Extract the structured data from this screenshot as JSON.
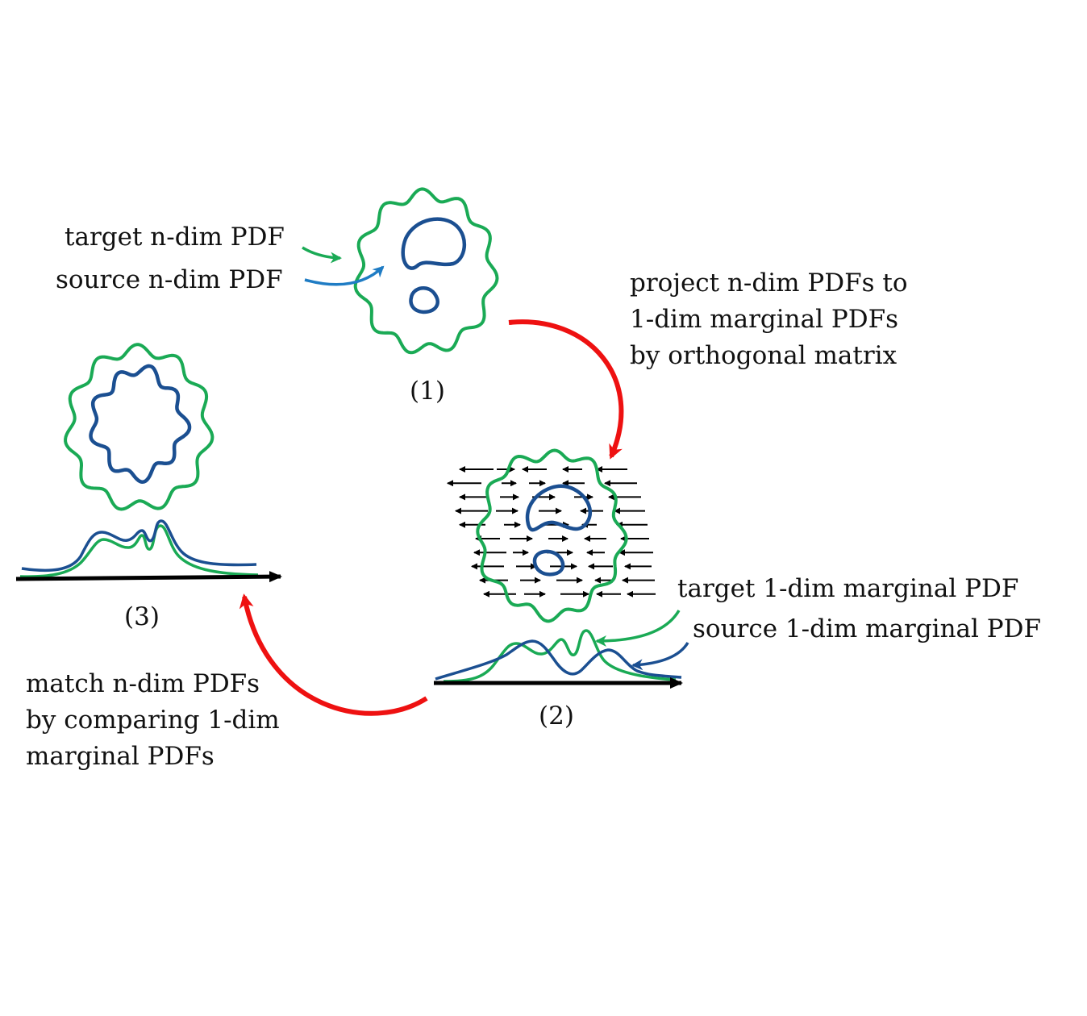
{
  "labels": {
    "target_ndim": "target n-dim PDF",
    "source_ndim": "source n-dim PDF",
    "project": "project n-dim PDFs to\n1-dim marginal PDFs\nby orthogonal matrix",
    "step1": "(1)",
    "step2": "(2)",
    "step3": "(3)",
    "target_1dim": "target 1-dim marginal PDF",
    "source_1dim": "source 1-dim marginal PDF",
    "match": "match n-dim PDFs\nby comparing 1-dim\nmarginal PDFs"
  },
  "colors": {
    "target": "#1aaa55",
    "source": "#1b4f91",
    "source_arrow": "#1f7cc4",
    "cycle_arrow": "#ee1111",
    "axis": "#000000"
  }
}
